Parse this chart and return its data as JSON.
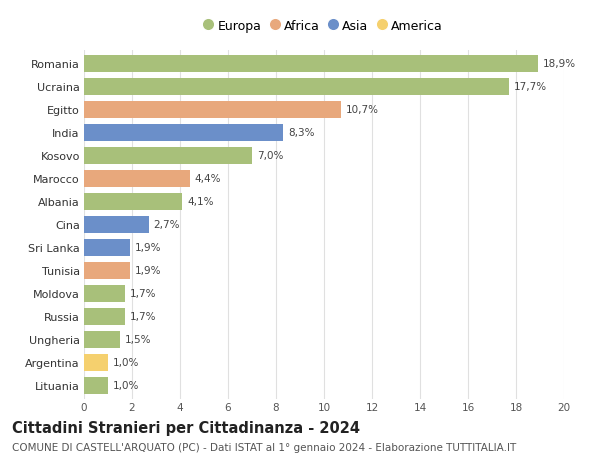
{
  "countries": [
    "Romania",
    "Ucraina",
    "Egitto",
    "India",
    "Kosovo",
    "Marocco",
    "Albania",
    "Cina",
    "Sri Lanka",
    "Tunisia",
    "Moldova",
    "Russia",
    "Ungheria",
    "Argentina",
    "Lituania"
  ],
  "values": [
    18.9,
    17.7,
    10.7,
    8.3,
    7.0,
    4.4,
    4.1,
    2.7,
    1.9,
    1.9,
    1.7,
    1.7,
    1.5,
    1.0,
    1.0
  ],
  "continents": [
    "Europa",
    "Europa",
    "Africa",
    "Asia",
    "Europa",
    "Africa",
    "Europa",
    "Asia",
    "Asia",
    "Africa",
    "Europa",
    "Europa",
    "Europa",
    "America",
    "Europa"
  ],
  "colors": {
    "Europa": "#a8c07a",
    "Africa": "#e8a87c",
    "Asia": "#6b8fc9",
    "America": "#f5d06e"
  },
  "legend_order": [
    "Europa",
    "Africa",
    "Asia",
    "America"
  ],
  "xlim": [
    0,
    20
  ],
  "xticks": [
    0,
    2,
    4,
    6,
    8,
    10,
    12,
    14,
    16,
    18,
    20
  ],
  "title": "Cittadini Stranieri per Cittadinanza - 2024",
  "subtitle": "COMUNE DI CASTELL'ARQUATO (PC) - Dati ISTAT al 1° gennaio 2024 - Elaborazione TUTTITALIA.IT",
  "title_fontsize": 10.5,
  "subtitle_fontsize": 7.5,
  "bar_height": 0.72,
  "label_fontsize": 7.5,
  "ytick_fontsize": 8,
  "xtick_fontsize": 7.5,
  "background_color": "#ffffff",
  "grid_color": "#e0e0e0"
}
